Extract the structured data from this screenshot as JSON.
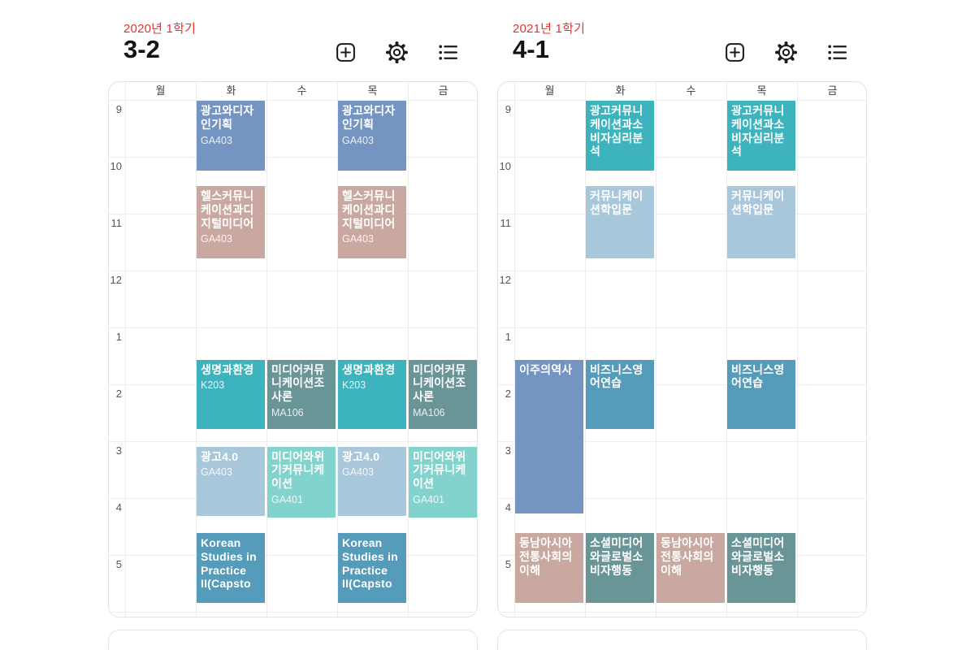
{
  "colors": {
    "semester_red": "#e4342d",
    "icon_black": "#1b1b1b",
    "grid_line": "#ededed",
    "card_border": "#e2e2e2",
    "class_palette": {
      "slate_blue": "#7494c1",
      "rose": "#c9a8a2",
      "teal": "#3db4bd",
      "sage_green": "#6a9597",
      "light_blue": "#a9c7da",
      "aqua": "#82d3cd",
      "steel_blue": "#559bba"
    }
  },
  "panels": [
    {
      "semester_label": "2020년 1학기",
      "grade_label": "3-2",
      "toolbar_icons": [
        "add-timetable-icon",
        "settings-gear-icon",
        "list-icon"
      ],
      "day_headers": [
        "월",
        "화",
        "수",
        "목",
        "금"
      ],
      "hour_labels": [
        "9",
        "10",
        "11",
        "12",
        "1",
        "2",
        "3",
        "4",
        "5"
      ],
      "classes": [
        {
          "title": "광고와디자인기획",
          "room": "GA403",
          "days": [
            1,
            3
          ],
          "start": 0,
          "duration": 1.25,
          "color": "#7494c1"
        },
        {
          "title": "헬스커뮤니케이션과디지털미디어",
          "room": "GA403",
          "days": [
            1,
            3
          ],
          "start": 1.5,
          "duration": 1.3,
          "color": "#c9a8a2"
        },
        {
          "title": "생명과환경",
          "room": "K203",
          "days": [
            1,
            3
          ],
          "start": 4.55,
          "duration": 1.25,
          "color": "#3db4bd"
        },
        {
          "title": "미디어커뮤니케이션조사론",
          "room": "MA106",
          "days": [
            2,
            4
          ],
          "start": 4.55,
          "duration": 1.25,
          "color": "#6a9597"
        },
        {
          "title": "광고4.0",
          "room": "GA403",
          "days": [
            1,
            3
          ],
          "start": 6.08,
          "duration": 1.25,
          "color": "#a9c7da"
        },
        {
          "title": "미디어와위기커뮤니케이션",
          "room": "GA401",
          "days": [
            2,
            4
          ],
          "start": 6.08,
          "duration": 1.28,
          "color": "#82d3cd"
        },
        {
          "title": "Korean Studies in Practice II(Capsto",
          "room": "",
          "days": [
            1,
            3
          ],
          "start": 7.6,
          "duration": 1.25,
          "color": "#559bba"
        }
      ]
    },
    {
      "semester_label": "2021년 1학기",
      "grade_label": "4-1",
      "toolbar_icons": [
        "add-timetable-icon",
        "settings-gear-icon",
        "list-icon"
      ],
      "day_headers": [
        "월",
        "화",
        "수",
        "목",
        "금"
      ],
      "hour_labels": [
        "9",
        "10",
        "11",
        "12",
        "1",
        "2",
        "3",
        "4",
        "5"
      ],
      "classes": [
        {
          "title": "광고커뮤니케이션과소비자심리분석",
          "room": "",
          "days": [
            1,
            3
          ],
          "start": 0,
          "duration": 1.25,
          "color": "#3db4bd"
        },
        {
          "title": "커뮤니케이션학입문",
          "room": "",
          "days": [
            1,
            3
          ],
          "start": 1.5,
          "duration": 1.3,
          "color": "#a9c7da"
        },
        {
          "title": "이주의역사",
          "room": "",
          "days": [
            0
          ],
          "start": 4.55,
          "duration": 2.73,
          "color": "#7494c1"
        },
        {
          "title": "비즈니스영어연습",
          "room": "",
          "days": [
            1,
            3
          ],
          "start": 4.55,
          "duration": 1.25,
          "color": "#559bba"
        },
        {
          "title": "동남아시아전통사회의이해",
          "room": "",
          "days": [
            0,
            2
          ],
          "start": 7.6,
          "duration": 1.25,
          "color": "#c9a8a2"
        },
        {
          "title": "소셜미디어와글로벌소비자행동",
          "room": "",
          "days": [
            1,
            3
          ],
          "start": 7.6,
          "duration": 1.25,
          "color": "#6a9597"
        }
      ]
    }
  ]
}
